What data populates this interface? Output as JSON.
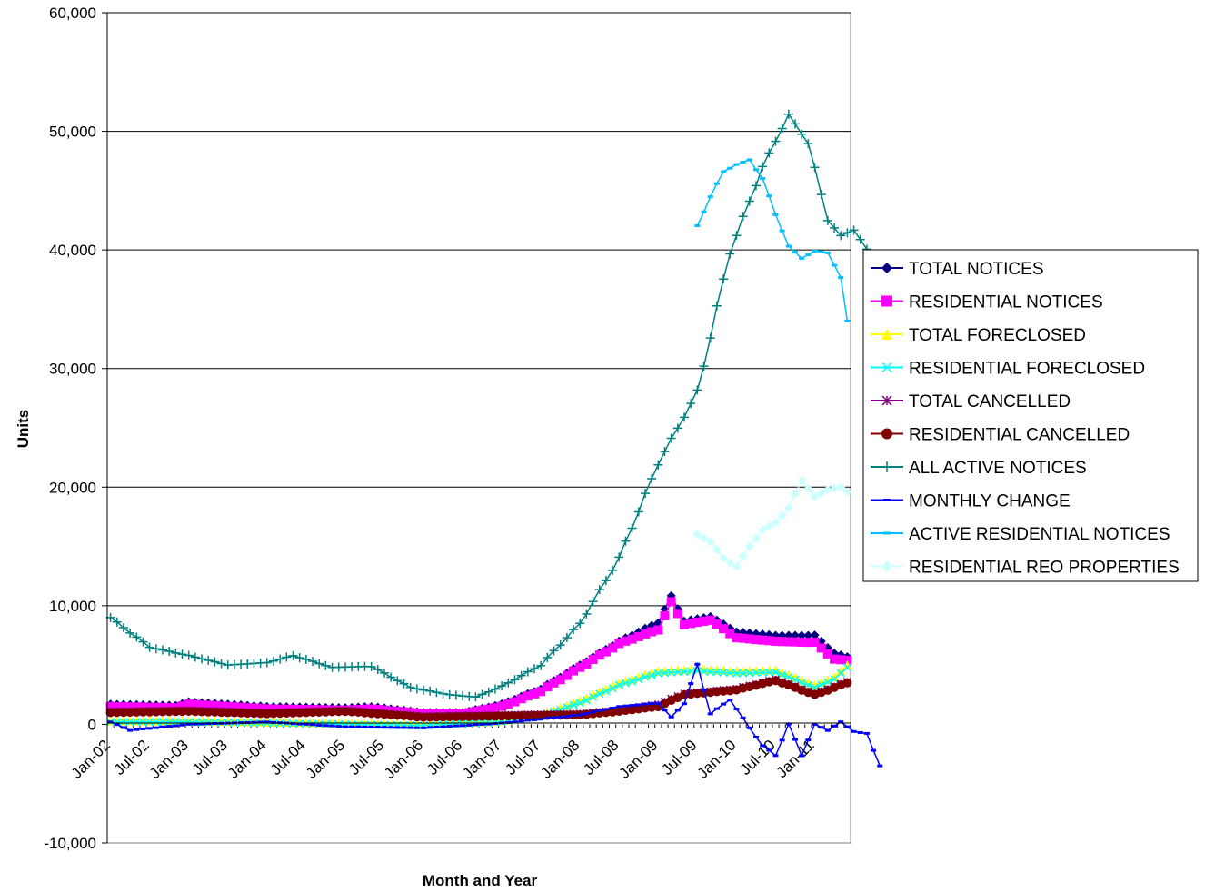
{
  "chart_data": {
    "type": "line",
    "title": "",
    "xlabel": "Month and Year",
    "ylabel": "Units",
    "ylim": [
      -10000,
      60000
    ],
    "y_ticks": [
      -10000,
      0,
      10000,
      20000,
      30000,
      40000,
      50000,
      60000
    ],
    "y_tick_labels": [
      "-10,000",
      "0",
      "10,000",
      "20,000",
      "30,000",
      "40,000",
      "50,000",
      "60,000"
    ],
    "x_tick_labels": [
      "Jan-02",
      "Jul-02",
      "Jan-03",
      "Jul-03",
      "Jan-04",
      "Jul-04",
      "Jan-05",
      "Jul-05",
      "Jan-06",
      "Jul-06",
      "Jan-07",
      "Jul-07",
      "Jan-08",
      "Jul-08",
      "Jan-09",
      "Jul-09",
      "Jan-10",
      "Jul-10",
      "Jan-11"
    ],
    "x_start": "Jan-02",
    "x_end": "Jun-11",
    "grid": "horizontal",
    "legend_position": "right",
    "series": [
      {
        "name": "TOTAL NOTICES",
        "color": "#000080",
        "marker": "diamond",
        "anchors": [
          [
            0,
            1700
          ],
          [
            10,
            1600
          ],
          [
            12,
            1900
          ],
          [
            24,
            1500
          ],
          [
            36,
            1400
          ],
          [
            40,
            1500
          ],
          [
            48,
            1000
          ],
          [
            54,
            1000
          ],
          [
            60,
            1700
          ],
          [
            66,
            3000
          ],
          [
            72,
            5000
          ],
          [
            78,
            7000
          ],
          [
            84,
            8600
          ],
          [
            86,
            10800
          ],
          [
            88,
            8700
          ],
          [
            92,
            9100
          ],
          [
            96,
            7800
          ],
          [
            102,
            7500
          ],
          [
            108,
            7500
          ],
          [
            111,
            6000
          ],
          [
            113,
            5700
          ]
        ]
      },
      {
        "name": "RESIDENTIAL NOTICES",
        "color": "#ff00ff",
        "marker": "square",
        "anchors": [
          [
            0,
            1500
          ],
          [
            10,
            1400
          ],
          [
            12,
            1700
          ],
          [
            24,
            1300
          ],
          [
            36,
            1200
          ],
          [
            40,
            1300
          ],
          [
            48,
            900
          ],
          [
            54,
            900
          ],
          [
            60,
            1500
          ],
          [
            66,
            2800
          ],
          [
            72,
            4800
          ],
          [
            78,
            6800
          ],
          [
            84,
            8000
          ],
          [
            86,
            10300
          ],
          [
            88,
            8400
          ],
          [
            92,
            8800
          ],
          [
            96,
            7300
          ],
          [
            102,
            7000
          ],
          [
            108,
            6900
          ],
          [
            111,
            5500
          ],
          [
            113,
            5400
          ]
        ]
      },
      {
        "name": "TOTAL FORECLOSED",
        "color": "#ffff00",
        "marker": "triangle",
        "anchors": [
          [
            0,
            300
          ],
          [
            12,
            300
          ],
          [
            24,
            200
          ],
          [
            36,
            100
          ],
          [
            48,
            0
          ],
          [
            60,
            300
          ],
          [
            66,
            800
          ],
          [
            72,
            2000
          ],
          [
            78,
            3500
          ],
          [
            84,
            4500
          ],
          [
            90,
            4700
          ],
          [
            96,
            4500
          ],
          [
            102,
            4600
          ],
          [
            108,
            3300
          ],
          [
            111,
            4000
          ],
          [
            113,
            5000
          ]
        ]
      },
      {
        "name": "RESIDENTIAL FORECLOSED",
        "color": "#00ffff",
        "marker": "x",
        "anchors": [
          [
            0,
            200
          ],
          [
            12,
            200
          ],
          [
            24,
            100
          ],
          [
            36,
            0
          ],
          [
            48,
            -100
          ],
          [
            60,
            200
          ],
          [
            66,
            700
          ],
          [
            72,
            1800
          ],
          [
            78,
            3300
          ],
          [
            84,
            4300
          ],
          [
            90,
            4500
          ],
          [
            96,
            4300
          ],
          [
            102,
            4400
          ],
          [
            108,
            3100
          ],
          [
            111,
            3800
          ],
          [
            113,
            4800
          ]
        ]
      },
      {
        "name": "TOTAL CANCELLED",
        "color": "#800080",
        "marker": "star",
        "anchors": [
          [
            0,
            1100
          ],
          [
            12,
            1200
          ],
          [
            24,
            1000
          ],
          [
            36,
            1200
          ],
          [
            48,
            700
          ],
          [
            60,
            800
          ],
          [
            72,
            900
          ],
          [
            78,
            1200
          ],
          [
            84,
            1700
          ],
          [
            88,
            2600
          ],
          [
            96,
            3000
          ],
          [
            102,
            3800
          ],
          [
            108,
            2600
          ],
          [
            113,
            3600
          ]
        ]
      },
      {
        "name": "RESIDENTIAL CANCELLED",
        "color": "#800000",
        "marker": "circle",
        "anchors": [
          [
            0,
            1000
          ],
          [
            12,
            1100
          ],
          [
            24,
            900
          ],
          [
            36,
            1100
          ],
          [
            48,
            600
          ],
          [
            60,
            700
          ],
          [
            72,
            800
          ],
          [
            78,
            1100
          ],
          [
            84,
            1500
          ],
          [
            88,
            2500
          ],
          [
            96,
            2900
          ],
          [
            102,
            3700
          ],
          [
            108,
            2500
          ],
          [
            113,
            3500
          ]
        ]
      },
      {
        "name": "ALL ACTIVE NOTICES",
        "color": "#008080",
        "marker": "plus",
        "anchors": [
          [
            0,
            9000
          ],
          [
            6,
            6500
          ],
          [
            12,
            5800
          ],
          [
            18,
            5000
          ],
          [
            24,
            5200
          ],
          [
            28,
            5800
          ],
          [
            34,
            4800
          ],
          [
            40,
            4900
          ],
          [
            46,
            3100
          ],
          [
            52,
            2500
          ],
          [
            56,
            2300
          ],
          [
            60,
            3200
          ],
          [
            66,
            5000
          ],
          [
            72,
            8500
          ],
          [
            78,
            14000
          ],
          [
            84,
            22000
          ],
          [
            90,
            28000
          ],
          [
            95,
            39800
          ],
          [
            100,
            47000
          ],
          [
            104,
            51400
          ],
          [
            107,
            49000
          ],
          [
            110,
            42500
          ],
          [
            112,
            41200
          ],
          [
            114,
            41700
          ],
          [
            116,
            40000
          ],
          [
            118,
            35400
          ]
        ]
      },
      {
        "name": "MONTHLY CHANGE",
        "color": "#0000ff",
        "marker": "dash",
        "anchors": [
          [
            0,
            200
          ],
          [
            3,
            -500
          ],
          [
            12,
            0
          ],
          [
            24,
            200
          ],
          [
            36,
            -200
          ],
          [
            48,
            -300
          ],
          [
            60,
            100
          ],
          [
            72,
            800
          ],
          [
            78,
            1500
          ],
          [
            84,
            1800
          ],
          [
            86,
            600
          ],
          [
            88,
            1800
          ],
          [
            90,
            5000
          ],
          [
            92,
            900
          ],
          [
            95,
            2100
          ],
          [
            98,
            -300
          ],
          [
            100,
            -1800
          ],
          [
            102,
            -2600
          ],
          [
            104,
            0
          ],
          [
            106,
            -2600
          ],
          [
            108,
            0
          ],
          [
            110,
            -500
          ],
          [
            112,
            200
          ],
          [
            114,
            -600
          ],
          [
            116,
            -800
          ],
          [
            118,
            -3500
          ]
        ]
      },
      {
        "name": "ACTIVE RESIDENTIAL NOTICES",
        "color": "#00bfff",
        "marker": "dash",
        "anchors": [
          [
            90,
            42000
          ],
          [
            92,
            44500
          ],
          [
            94,
            46600
          ],
          [
            96,
            47200
          ],
          [
            98,
            47600
          ],
          [
            100,
            46000
          ],
          [
            102,
            43000
          ],
          [
            104,
            40300
          ],
          [
            106,
            39300
          ],
          [
            108,
            39900
          ],
          [
            110,
            39800
          ],
          [
            112,
            37600
          ],
          [
            113,
            34000
          ]
        ]
      },
      {
        "name": "RESIDENTIAL REO PROPERTIES",
        "color": "#ccffff",
        "marker": "diamond",
        "anchors": [
          [
            90,
            16000
          ],
          [
            92,
            15400
          ],
          [
            94,
            14000
          ],
          [
            96,
            13300
          ],
          [
            98,
            15000
          ],
          [
            100,
            16400
          ],
          [
            102,
            17000
          ],
          [
            104,
            18200
          ],
          [
            106,
            20600
          ],
          [
            108,
            19200
          ],
          [
            110,
            19800
          ],
          [
            112,
            20000
          ],
          [
            113,
            19600
          ]
        ]
      }
    ]
  }
}
